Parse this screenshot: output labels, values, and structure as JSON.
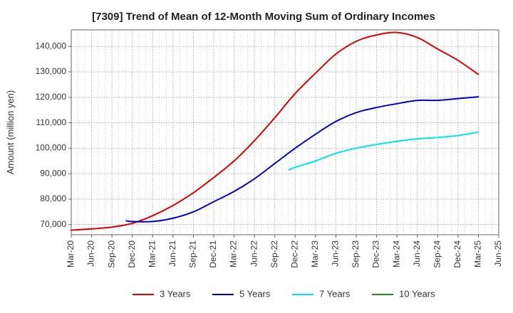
{
  "chart_data": {
    "type": "line",
    "title": "[7309]  Trend of Mean of 12-Month Moving Sum of Ordinary Incomes",
    "xlabel": "",
    "ylabel": "Amount (million yen)",
    "ylim": [
      66000,
      146500
    ],
    "yticks": [
      70000,
      80000,
      90000,
      100000,
      110000,
      120000,
      130000,
      140000
    ],
    "ytick_labels": [
      "70,000",
      "80,000",
      "90,000",
      "100,000",
      "110,000",
      "120,000",
      "130,000",
      "140,000"
    ],
    "xtick_labels": [
      "Mar-20",
      "Jun-20",
      "Sep-20",
      "Dec-20",
      "Mar-21",
      "Jun-21",
      "Sep-21",
      "Dec-21",
      "Mar-22",
      "Jun-22",
      "Sep-22",
      "Dec-22",
      "Mar-23",
      "Jun-23",
      "Sep-23",
      "Dec-23",
      "Mar-24",
      "Jun-24",
      "Sep-24",
      "Dec-24",
      "Mar-25",
      "Jun-25"
    ],
    "grid": true,
    "legend_position": "bottom",
    "series": [
      {
        "name": "3 Years",
        "color": "#dd0000",
        "points": [
          [
            0,
            67800
          ],
          [
            1,
            68300
          ],
          [
            2,
            69000
          ],
          [
            3,
            70500
          ],
          [
            4,
            73500
          ],
          [
            5,
            77500
          ],
          [
            6,
            82500
          ],
          [
            7,
            88500
          ],
          [
            8,
            95000
          ],
          [
            9,
            103000
          ],
          [
            10,
            112000
          ],
          [
            11,
            121500
          ],
          [
            12,
            129500
          ],
          [
            13,
            137000
          ],
          [
            14,
            142000
          ],
          [
            15,
            144500
          ],
          [
            16,
            145500
          ],
          [
            17,
            143500
          ],
          [
            18,
            139000
          ],
          [
            19,
            134500
          ],
          [
            20,
            129000
          ]
        ]
      },
      {
        "name": "5 Years",
        "color": "#0000cc",
        "points": [
          [
            2.7,
            71500
          ],
          [
            3,
            71200
          ],
          [
            4,
            71200
          ],
          [
            5,
            72500
          ],
          [
            6,
            75000
          ],
          [
            7,
            79000
          ],
          [
            8,
            83000
          ],
          [
            9,
            88000
          ],
          [
            10,
            94000
          ],
          [
            11,
            100000
          ],
          [
            12,
            105500
          ],
          [
            13,
            110500
          ],
          [
            14,
            114000
          ],
          [
            15,
            116000
          ],
          [
            16,
            117500
          ],
          [
            17,
            118800
          ],
          [
            18,
            118800
          ],
          [
            19,
            119500
          ],
          [
            20,
            120200
          ]
        ]
      },
      {
        "name": "7 Years",
        "color": "#00e5e5",
        "points": [
          [
            10.7,
            91500
          ],
          [
            11,
            92500
          ],
          [
            12,
            95000
          ],
          [
            13,
            98000
          ],
          [
            14,
            100000
          ],
          [
            15,
            101500
          ],
          [
            16,
            102700
          ],
          [
            17,
            103700
          ],
          [
            18,
            104200
          ],
          [
            19,
            105000
          ],
          [
            20,
            106300
          ]
        ]
      },
      {
        "name": "10 Years",
        "color": "#228b22",
        "points": []
      }
    ]
  }
}
